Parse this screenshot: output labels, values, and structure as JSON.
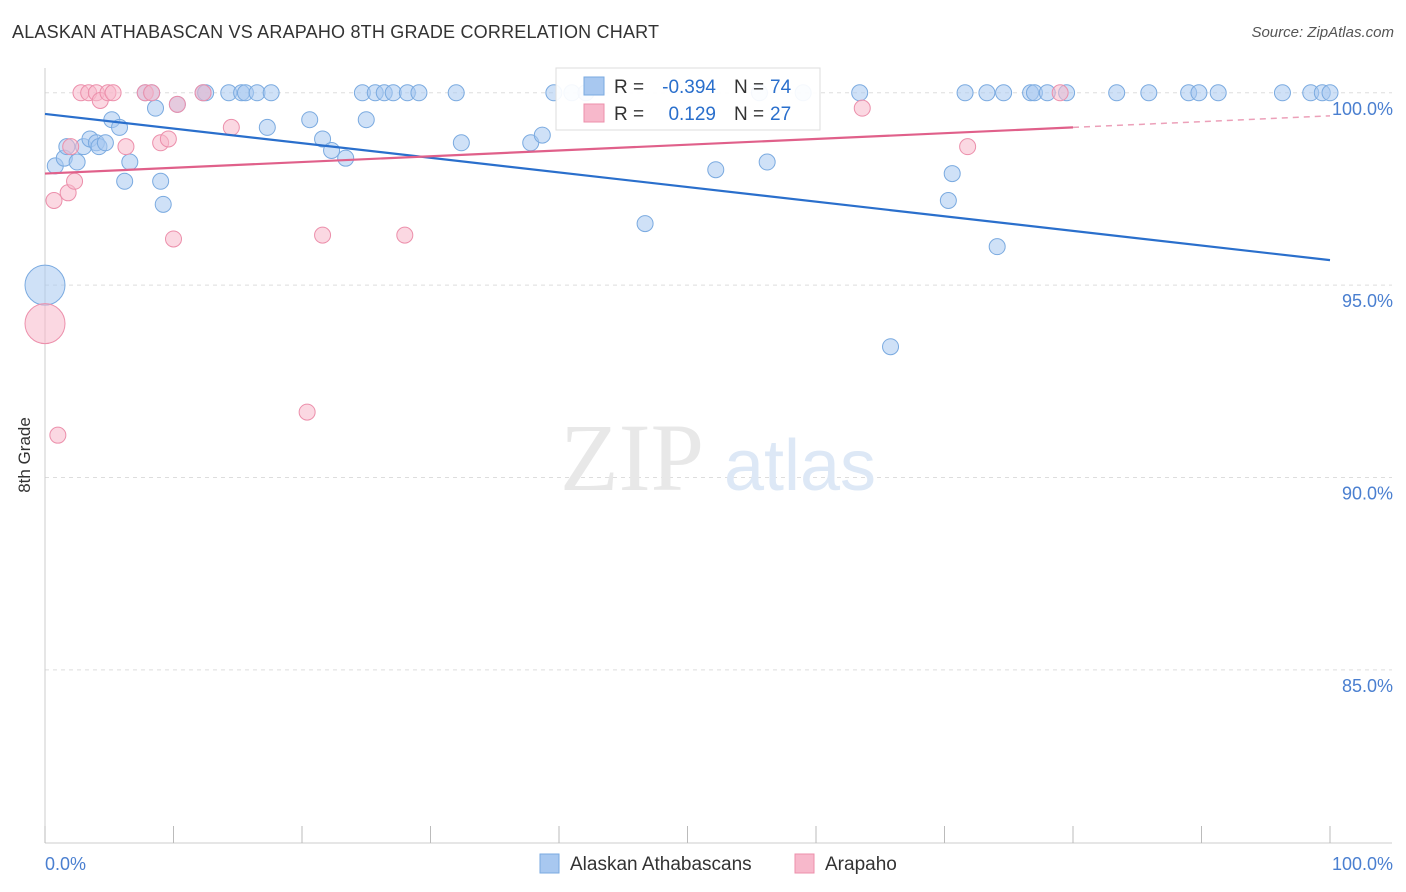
{
  "header": {
    "title": "ALASKAN ATHABASCAN VS ARAPAHO 8TH GRADE CORRELATION CHART",
    "source": "Source: ZipAtlas.com"
  },
  "watermark": {
    "zip": "ZIP",
    "atlas": "atlas"
  },
  "colors": {
    "blue_fill": "#a8c8f0",
    "blue_stroke": "#7aaae0",
    "blue_line": "#2a6fcc",
    "pink_fill": "#f7b8cb",
    "pink_stroke": "#ec8fab",
    "pink_line": "#e0608a",
    "tick_label": "#4a7fd0",
    "grid": "#dddddd"
  },
  "chart_data": {
    "type": "scatter",
    "title": "ALASKAN ATHABASCAN VS ARAPAHO 8TH GRADE CORRELATION CHART",
    "xlabel": "",
    "ylabel": "8th Grade",
    "xlim": [
      0,
      100
    ],
    "ylim": [
      80.5,
      100.8
    ],
    "x_tick_labels": [
      "0.0%",
      "100.0%"
    ],
    "y_ticks": [
      {
        "value": 100,
        "label": "100.0%"
      },
      {
        "value": 95,
        "label": "95.0%"
      },
      {
        "value": 90,
        "label": "90.0%"
      },
      {
        "value": 85,
        "label": "85.0%"
      }
    ],
    "grid": true,
    "legend_position": "bottom-center",
    "stats_box": [
      {
        "r_label": "R =",
        "r_value": "-0.394",
        "n_label": "N =",
        "n_value": "74"
      },
      {
        "r_label": "R =",
        "r_value": "0.129",
        "n_label": "N =",
        "n_value": "27"
      }
    ],
    "series": [
      {
        "name": "Alaskan Athabascans",
        "color": "#a8c8f0",
        "trend": {
          "x": [
            0,
            100
          ],
          "y": [
            99.45,
            95.65
          ],
          "solid_until": 100
        },
        "points": [
          {
            "x": 0.0,
            "y": 95.0,
            "big": true
          },
          {
            "x": 0.8,
            "y": 98.1
          },
          {
            "x": 1.5,
            "y": 98.3
          },
          {
            "x": 1.7,
            "y": 98.6
          },
          {
            "x": 2.5,
            "y": 98.2
          },
          {
            "x": 3.0,
            "y": 98.6
          },
          {
            "x": 3.5,
            "y": 98.8
          },
          {
            "x": 4.0,
            "y": 98.7
          },
          {
            "x": 4.2,
            "y": 98.6
          },
          {
            "x": 4.7,
            "y": 98.7
          },
          {
            "x": 5.2,
            "y": 99.3
          },
          {
            "x": 5.8,
            "y": 99.1
          },
          {
            "x": 6.2,
            "y": 97.7
          },
          {
            "x": 6.6,
            "y": 98.2
          },
          {
            "x": 7.8,
            "y": 100.0
          },
          {
            "x": 8.3,
            "y": 100.0
          },
          {
            "x": 8.6,
            "y": 99.6
          },
          {
            "x": 9.0,
            "y": 97.7
          },
          {
            "x": 9.2,
            "y": 97.1
          },
          {
            "x": 10.3,
            "y": 99.7
          },
          {
            "x": 12.3,
            "y": 100.0
          },
          {
            "x": 12.5,
            "y": 100.0
          },
          {
            "x": 14.3,
            "y": 100.0
          },
          {
            "x": 15.3,
            "y": 100.0
          },
          {
            "x": 15.6,
            "y": 100.0
          },
          {
            "x": 16.5,
            "y": 100.0
          },
          {
            "x": 17.6,
            "y": 100.0
          },
          {
            "x": 17.3,
            "y": 99.1
          },
          {
            "x": 20.6,
            "y": 99.3
          },
          {
            "x": 21.6,
            "y": 98.8
          },
          {
            "x": 22.3,
            "y": 98.5
          },
          {
            "x": 23.4,
            "y": 98.3
          },
          {
            "x": 24.7,
            "y": 100.0
          },
          {
            "x": 25.7,
            "y": 100.0
          },
          {
            "x": 25.0,
            "y": 99.3
          },
          {
            "x": 26.4,
            "y": 100.0
          },
          {
            "x": 27.1,
            "y": 100.0
          },
          {
            "x": 28.2,
            "y": 100.0
          },
          {
            "x": 29.1,
            "y": 100.0
          },
          {
            "x": 32.0,
            "y": 100.0
          },
          {
            "x": 32.4,
            "y": 98.7
          },
          {
            "x": 37.8,
            "y": 98.7
          },
          {
            "x": 38.7,
            "y": 98.9
          },
          {
            "x": 39.6,
            "y": 100.0
          },
          {
            "x": 41.0,
            "y": 100.0
          },
          {
            "x": 42.1,
            "y": 100.0
          },
          {
            "x": 46.7,
            "y": 96.6
          },
          {
            "x": 52.2,
            "y": 98.0
          },
          {
            "x": 55.6,
            "y": 100.0
          },
          {
            "x": 56.2,
            "y": 98.2
          },
          {
            "x": 59.0,
            "y": 100.0
          },
          {
            "x": 63.4,
            "y": 100.0
          },
          {
            "x": 65.8,
            "y": 93.4
          },
          {
            "x": 70.3,
            "y": 97.2
          },
          {
            "x": 70.6,
            "y": 97.9
          },
          {
            "x": 71.6,
            "y": 100.0
          },
          {
            "x": 73.3,
            "y": 100.0
          },
          {
            "x": 74.6,
            "y": 100.0
          },
          {
            "x": 74.1,
            "y": 96.0
          },
          {
            "x": 76.7,
            "y": 100.0
          },
          {
            "x": 77.0,
            "y": 100.0
          },
          {
            "x": 78.0,
            "y": 100.0
          },
          {
            "x": 79.5,
            "y": 100.0
          },
          {
            "x": 83.4,
            "y": 100.0
          },
          {
            "x": 85.9,
            "y": 100.0
          },
          {
            "x": 89.0,
            "y": 100.0
          },
          {
            "x": 89.8,
            "y": 100.0
          },
          {
            "x": 91.3,
            "y": 100.0
          },
          {
            "x": 96.3,
            "y": 100.0
          },
          {
            "x": 98.5,
            "y": 100.0
          },
          {
            "x": 99.4,
            "y": 100.0
          },
          {
            "x": 100.0,
            "y": 100.0
          }
        ]
      },
      {
        "name": "Arapaho",
        "color": "#f7b8cb",
        "trend": {
          "x": [
            0,
            100
          ],
          "y": [
            97.9,
            99.4
          ],
          "solid_until": 80
        },
        "points": [
          {
            "x": 0.0,
            "y": 94.0,
            "big": true
          },
          {
            "x": 0.7,
            "y": 97.2
          },
          {
            "x": 1.0,
            "y": 91.1
          },
          {
            "x": 1.8,
            "y": 97.4
          },
          {
            "x": 2.0,
            "y": 98.6
          },
          {
            "x": 2.3,
            "y": 97.7
          },
          {
            "x": 2.8,
            "y": 100.0
          },
          {
            "x": 3.4,
            "y": 100.0
          },
          {
            "x": 4.0,
            "y": 100.0
          },
          {
            "x": 4.3,
            "y": 99.8
          },
          {
            "x": 4.9,
            "y": 100.0
          },
          {
            "x": 5.3,
            "y": 100.0
          },
          {
            "x": 6.3,
            "y": 98.6
          },
          {
            "x": 7.8,
            "y": 100.0
          },
          {
            "x": 8.3,
            "y": 100.0
          },
          {
            "x": 9.0,
            "y": 98.7
          },
          {
            "x": 9.6,
            "y": 98.8
          },
          {
            "x": 10.0,
            "y": 96.2
          },
          {
            "x": 10.3,
            "y": 99.7
          },
          {
            "x": 12.3,
            "y": 100.0
          },
          {
            "x": 14.5,
            "y": 99.1
          },
          {
            "x": 20.4,
            "y": 91.7
          },
          {
            "x": 21.6,
            "y": 96.3
          },
          {
            "x": 28.0,
            "y": 96.3
          },
          {
            "x": 63.6,
            "y": 99.6
          },
          {
            "x": 71.8,
            "y": 98.6
          },
          {
            "x": 79.0,
            "y": 100.0
          }
        ]
      }
    ]
  }
}
